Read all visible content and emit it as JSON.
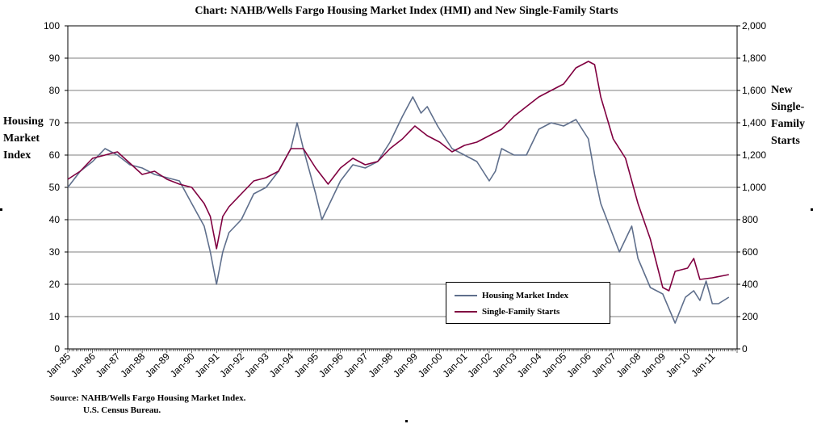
{
  "chart_data": {
    "type": "line",
    "title": "Chart:  NAHB/Wells Fargo Housing Market Index (HMI) and New Single-Family Starts",
    "ylabel_left": "Housing Market Index",
    "ylabel_right": "New Single-Family Starts",
    "source_line1": "Source: NAHB/Wells Fargo Housing Market Index.",
    "source_line2": "U.S. Census Bureau.",
    "ylim_left": [
      0,
      100
    ],
    "ylim_right": [
      0,
      2000
    ],
    "yticks_left": [
      "0",
      "10",
      "20",
      "30",
      "40",
      "50",
      "60",
      "70",
      "80",
      "90",
      "100"
    ],
    "yticks_right": [
      "0",
      "200",
      "400",
      "600",
      "800",
      "1,000",
      "1,200",
      "1,400",
      "1,600",
      "1,800",
      "2,000"
    ],
    "xticks": [
      "Jan-85",
      "Jan-86",
      "Jan-87",
      "Jan-88",
      "Jan-89",
      "Jan-90",
      "Jan-91",
      "Jan-92",
      "Jan-93",
      "Jan-94",
      "Jan-95",
      "Jan-96",
      "Jan-97",
      "Jan-98",
      "Jan-99",
      "Jan-00",
      "Jan-01",
      "Jan-02",
      "Jan-03",
      "Jan-04",
      "Jan-05",
      "Jan-06",
      "Jan-07",
      "Jan-08",
      "Jan-09",
      "Jan-10",
      "Jan-11"
    ],
    "x_range": [
      "1985-01",
      "2011-12"
    ],
    "grid": "horizontal",
    "legend_position": "bottom-right",
    "series": [
      {
        "name": "Housing Market Index",
        "axis": "left",
        "color": "#5f6f8c",
        "points": [
          [
            "1985-01",
            50
          ],
          [
            "1985-07",
            55
          ],
          [
            "1986-01",
            58
          ],
          [
            "1986-07",
            62
          ],
          [
            "1987-01",
            60
          ],
          [
            "1987-07",
            57
          ],
          [
            "1988-01",
            56
          ],
          [
            "1988-07",
            54
          ],
          [
            "1989-01",
            53
          ],
          [
            "1989-07",
            52
          ],
          [
            "1990-01",
            45
          ],
          [
            "1990-07",
            38
          ],
          [
            "1990-10",
            30
          ],
          [
            "1991-01",
            20
          ],
          [
            "1991-04",
            30
          ],
          [
            "1991-07",
            36
          ],
          [
            "1992-01",
            40
          ],
          [
            "1992-07",
            48
          ],
          [
            "1993-01",
            50
          ],
          [
            "1993-07",
            55
          ],
          [
            "1994-01",
            62
          ],
          [
            "1994-04",
            70
          ],
          [
            "1994-07",
            62
          ],
          [
            "1995-01",
            48
          ],
          [
            "1995-04",
            40
          ],
          [
            "1995-07",
            44
          ],
          [
            "1996-01",
            52
          ],
          [
            "1996-07",
            57
          ],
          [
            "1997-01",
            56
          ],
          [
            "1997-07",
            58
          ],
          [
            "1998-01",
            64
          ],
          [
            "1998-07",
            72
          ],
          [
            "1998-12",
            78
          ],
          [
            "1999-04",
            73
          ],
          [
            "1999-07",
            75
          ],
          [
            "1999-12",
            69
          ],
          [
            "2000-04",
            65
          ],
          [
            "2000-07",
            62
          ],
          [
            "2001-01",
            60
          ],
          [
            "2001-07",
            58
          ],
          [
            "2002-01",
            52
          ],
          [
            "2002-04",
            55
          ],
          [
            "2002-07",
            62
          ],
          [
            "2003-01",
            60
          ],
          [
            "2003-07",
            60
          ],
          [
            "2004-01",
            68
          ],
          [
            "2004-07",
            70
          ],
          [
            "2005-01",
            69
          ],
          [
            "2005-07",
            71
          ],
          [
            "2006-01",
            65
          ],
          [
            "2006-04",
            54
          ],
          [
            "2006-07",
            45
          ],
          [
            "2007-01",
            35
          ],
          [
            "2007-04",
            30
          ],
          [
            "2007-10",
            38
          ],
          [
            "2008-01",
            28
          ],
          [
            "2008-07",
            19
          ],
          [
            "2009-01",
            17
          ],
          [
            "2009-07",
            8
          ],
          [
            "2009-12",
            16
          ],
          [
            "2010-04",
            18
          ],
          [
            "2010-07",
            15
          ],
          [
            "2010-10",
            21
          ],
          [
            "2011-01",
            14
          ],
          [
            "2011-04",
            14
          ],
          [
            "2011-09",
            16
          ]
        ]
      },
      {
        "name": "Single-Family Starts",
        "axis": "right",
        "color": "#800040",
        "points": [
          [
            "1985-01",
            1050
          ],
          [
            "1985-07",
            1100
          ],
          [
            "1986-01",
            1180
          ],
          [
            "1986-07",
            1200
          ],
          [
            "1987-01",
            1220
          ],
          [
            "1987-07",
            1150
          ],
          [
            "1988-01",
            1080
          ],
          [
            "1988-07",
            1100
          ],
          [
            "1989-01",
            1050
          ],
          [
            "1989-07",
            1020
          ],
          [
            "1990-01",
            1000
          ],
          [
            "1990-07",
            900
          ],
          [
            "1990-10",
            820
          ],
          [
            "1991-01",
            620
          ],
          [
            "1991-04",
            820
          ],
          [
            "1991-07",
            880
          ],
          [
            "1992-01",
            960
          ],
          [
            "1992-07",
            1040
          ],
          [
            "1993-01",
            1060
          ],
          [
            "1993-07",
            1100
          ],
          [
            "1994-01",
            1240
          ],
          [
            "1994-07",
            1240
          ],
          [
            "1995-01",
            1120
          ],
          [
            "1995-07",
            1020
          ],
          [
            "1996-01",
            1120
          ],
          [
            "1996-07",
            1180
          ],
          [
            "1997-01",
            1140
          ],
          [
            "1997-07",
            1160
          ],
          [
            "1998-01",
            1240
          ],
          [
            "1998-07",
            1300
          ],
          [
            "1999-01",
            1380
          ],
          [
            "1999-07",
            1320
          ],
          [
            "2000-01",
            1280
          ],
          [
            "2000-07",
            1220
          ],
          [
            "2001-01",
            1260
          ],
          [
            "2001-07",
            1280
          ],
          [
            "2002-01",
            1320
          ],
          [
            "2002-07",
            1360
          ],
          [
            "2003-01",
            1440
          ],
          [
            "2003-07",
            1500
          ],
          [
            "2004-01",
            1560
          ],
          [
            "2004-07",
            1600
          ],
          [
            "2005-01",
            1640
          ],
          [
            "2005-07",
            1740
          ],
          [
            "2006-01",
            1780
          ],
          [
            "2006-04",
            1760
          ],
          [
            "2006-07",
            1560
          ],
          [
            "2007-01",
            1300
          ],
          [
            "2007-07",
            1180
          ],
          [
            "2008-01",
            900
          ],
          [
            "2008-07",
            680
          ],
          [
            "2009-01",
            380
          ],
          [
            "2009-04",
            360
          ],
          [
            "2009-07",
            480
          ],
          [
            "2010-01",
            500
          ],
          [
            "2010-04",
            560
          ],
          [
            "2010-07",
            430
          ],
          [
            "2011-01",
            440
          ],
          [
            "2011-09",
            460
          ]
        ]
      }
    ]
  }
}
